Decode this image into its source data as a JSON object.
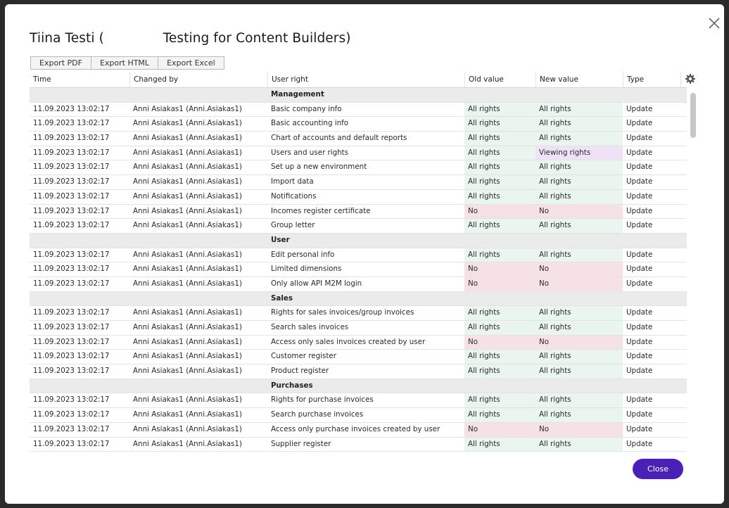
{
  "dialog": {
    "title": "Tiina Testi (              Testing for Content Builders)",
    "close_label": "Close"
  },
  "export": {
    "pdf": "Export PDF",
    "html": "Export HTML",
    "excel": "Export Excel"
  },
  "columns": {
    "time": "Time",
    "changed_by": "Changed by",
    "user_right": "User right",
    "old_value": "Old value",
    "new_value": "New value",
    "type": "Type"
  },
  "status_colors": {
    "all_rights": "#eaf5ef",
    "no": "#f6e1e5",
    "viewing_rights": "#efe2f6",
    "accent": "#4b20b5"
  },
  "rows": [
    {
      "group": "Management"
    },
    {
      "time": "11.09.2023 13:02:17",
      "by": "Anni Asiakas1 (Anni.Asiakas1)",
      "right": "Basic company info",
      "old": "All rights",
      "new": "All rights",
      "type": "Update"
    },
    {
      "time": "11.09.2023 13:02:17",
      "by": "Anni Asiakas1 (Anni.Asiakas1)",
      "right": "Basic accounting info",
      "old": "All rights",
      "new": "All rights",
      "type": "Update"
    },
    {
      "time": "11.09.2023 13:02:17",
      "by": "Anni Asiakas1 (Anni.Asiakas1)",
      "right": "Chart of accounts and default reports",
      "old": "All rights",
      "new": "All rights",
      "type": "Update"
    },
    {
      "time": "11.09.2023 13:02:17",
      "by": "Anni Asiakas1 (Anni.Asiakas1)",
      "right": "Users and user rights",
      "old": "All rights",
      "new": "Viewing rights",
      "type": "Update"
    },
    {
      "time": "11.09.2023 13:02:17",
      "by": "Anni Asiakas1 (Anni.Asiakas1)",
      "right": "Set up a new environment",
      "old": "All rights",
      "new": "All rights",
      "type": "Update"
    },
    {
      "time": "11.09.2023 13:02:17",
      "by": "Anni Asiakas1 (Anni.Asiakas1)",
      "right": "Import data",
      "old": "All rights",
      "new": "All rights",
      "type": "Update"
    },
    {
      "time": "11.09.2023 13:02:17",
      "by": "Anni Asiakas1 (Anni.Asiakas1)",
      "right": "Notifications",
      "old": "All rights",
      "new": "All rights",
      "type": "Update"
    },
    {
      "time": "11.09.2023 13:02:17",
      "by": "Anni Asiakas1 (Anni.Asiakas1)",
      "right": "Incomes register certificate",
      "old": "No",
      "new": "No",
      "type": "Update"
    },
    {
      "time": "11.09.2023 13:02:17",
      "by": "Anni Asiakas1 (Anni.Asiakas1)",
      "right": "Group letter",
      "old": "All rights",
      "new": "All rights",
      "type": "Update"
    },
    {
      "group": "User"
    },
    {
      "time": "11.09.2023 13:02:17",
      "by": "Anni Asiakas1 (Anni.Asiakas1)",
      "right": "Edit personal info",
      "old": "All rights",
      "new": "All rights",
      "type": "Update"
    },
    {
      "time": "11.09.2023 13:02:17",
      "by": "Anni Asiakas1 (Anni.Asiakas1)",
      "right": "Limited dimensions",
      "old": "No",
      "new": "No",
      "type": "Update"
    },
    {
      "time": "11.09.2023 13:02:17",
      "by": "Anni Asiakas1 (Anni.Asiakas1)",
      "right": "Only allow API M2M login",
      "old": "No",
      "new": "No",
      "type": "Update"
    },
    {
      "group": "Sales"
    },
    {
      "time": "11.09.2023 13:02:17",
      "by": "Anni Asiakas1 (Anni.Asiakas1)",
      "right": "Rights for sales invoices/group invoices",
      "old": "All rights",
      "new": "All rights",
      "type": "Update"
    },
    {
      "time": "11.09.2023 13:02:17",
      "by": "Anni Asiakas1 (Anni.Asiakas1)",
      "right": "Search sales invoices",
      "old": "All rights",
      "new": "All rights",
      "type": "Update"
    },
    {
      "time": "11.09.2023 13:02:17",
      "by": "Anni Asiakas1 (Anni.Asiakas1)",
      "right": "Access only sales invoices created by user",
      "old": "No",
      "new": "No",
      "type": "Update"
    },
    {
      "time": "11.09.2023 13:02:17",
      "by": "Anni Asiakas1 (Anni.Asiakas1)",
      "right": "Customer register",
      "old": "All rights",
      "new": "All rights",
      "type": "Update"
    },
    {
      "time": "11.09.2023 13:02:17",
      "by": "Anni Asiakas1 (Anni.Asiakas1)",
      "right": "Product register",
      "old": "All rights",
      "new": "All rights",
      "type": "Update"
    },
    {
      "group": "Purchases"
    },
    {
      "time": "11.09.2023 13:02:17",
      "by": "Anni Asiakas1 (Anni.Asiakas1)",
      "right": "Rights for purchase invoices",
      "old": "All rights",
      "new": "All rights",
      "type": "Update"
    },
    {
      "time": "11.09.2023 13:02:17",
      "by": "Anni Asiakas1 (Anni.Asiakas1)",
      "right": "Search purchase invoices",
      "old": "All rights",
      "new": "All rights",
      "type": "Update"
    },
    {
      "time": "11.09.2023 13:02:17",
      "by": "Anni Asiakas1 (Anni.Asiakas1)",
      "right": "Access only purchase invoices created by user",
      "old": "No",
      "new": "No",
      "type": "Update"
    },
    {
      "time": "11.09.2023 13:02:17",
      "by": "Anni Asiakas1 (Anni.Asiakas1)",
      "right": "Supplier register",
      "old": "All rights",
      "new": "All rights",
      "type": "Update"
    }
  ]
}
